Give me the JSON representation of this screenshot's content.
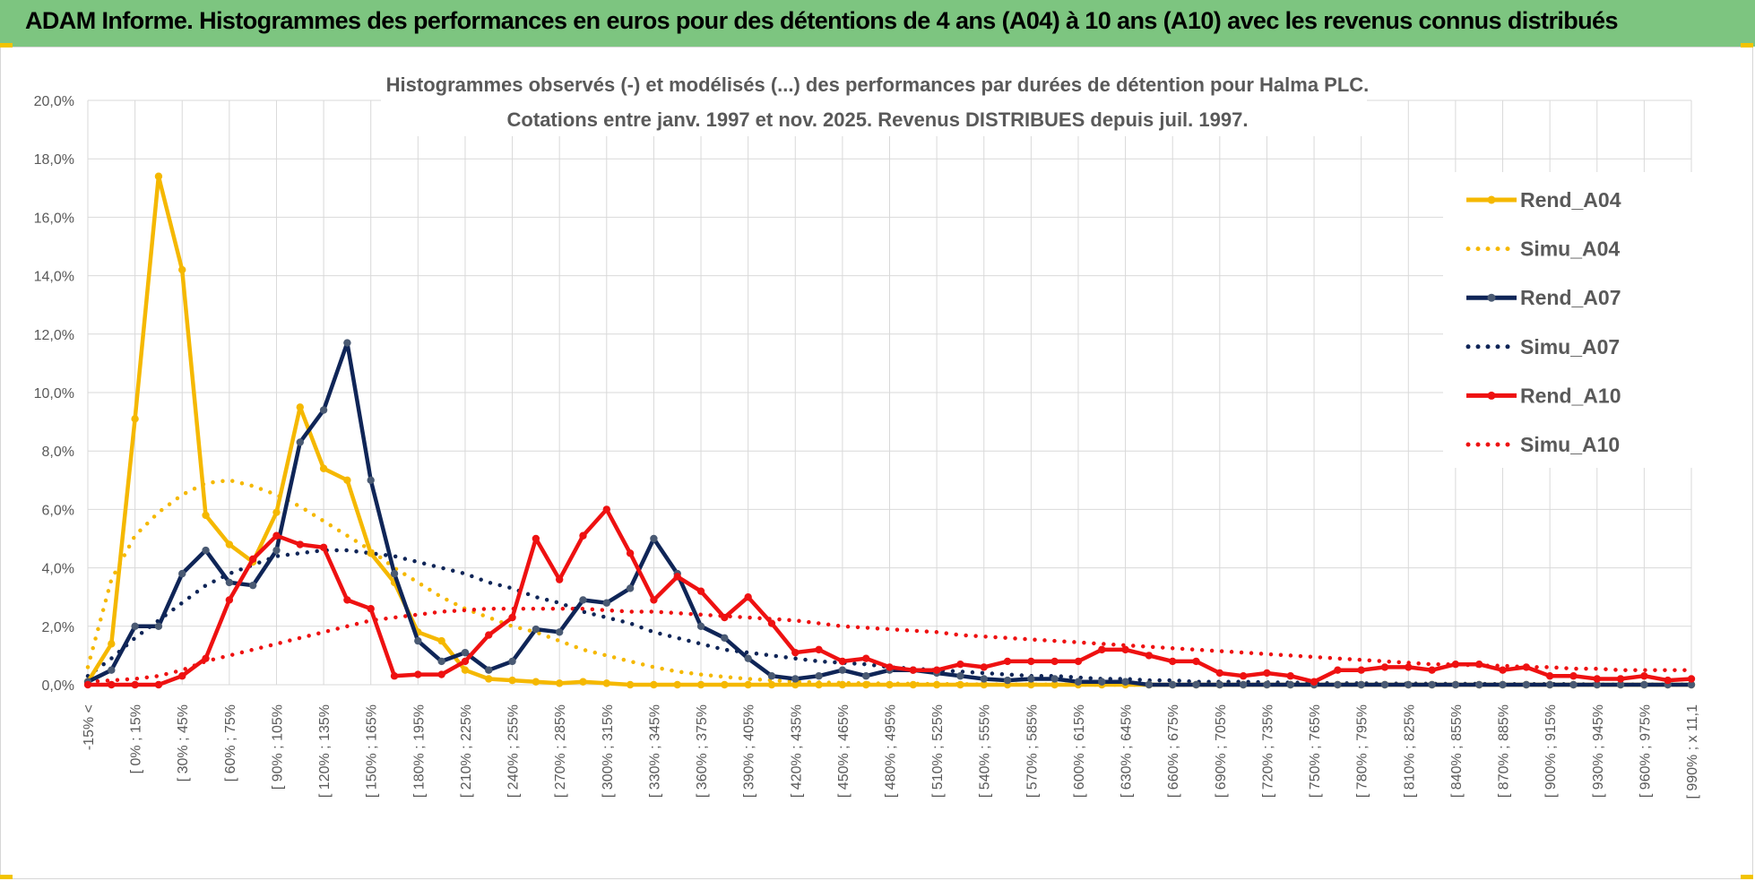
{
  "header": {
    "title": "ADAM Informe. Histogrammes des performances en euros pour des détentions de 4 ans (A04) à 10 ans (A10) avec les revenus connus distribués"
  },
  "colors": {
    "banner": "#7dc580",
    "A04": "#f5b800",
    "A07": "#0f2557",
    "A10": "#ee1111",
    "marker_A07": "#4a5a73",
    "grid": "#d9d9d9",
    "text": "#595959"
  },
  "chart_data": {
    "type": "line",
    "title": "Histogrammes observés (-) et modélisés (...) des performances par durées de détention pour Halma PLC.",
    "subtitle": "Cotations entre janv. 1997 et nov. 2025. Revenus DISTRIBUES depuis juil. 1997.",
    "ylim": [
      0,
      20
    ],
    "y_ticks": [
      "0,0%",
      "2,0%",
      "4,0%",
      "6,0%",
      "8,0%",
      "10,0%",
      "12,0%",
      "14,0%",
      "16,0%",
      "18,0%",
      "20,0%"
    ],
    "x_tick_labels": [
      "-15% <",
      "[ 0% ; 15%",
      "[ 30% ; 45%",
      "[ 60% ; 75%",
      "[ 90% ; 105%",
      "[ 120% ; 135%",
      "[ 150% ; 165%",
      "[ 180% ; 195%",
      "[ 210% ; 225%",
      "[ 240% ; 255%",
      "[ 270% ; 285%",
      "[ 300% ; 315%",
      "[ 330% ; 345%",
      "[ 360% ; 375%",
      "[ 390% ; 405%",
      "[ 420% ; 435%",
      "[ 450% ; 465%",
      "[ 480% ; 495%",
      "[ 510% ; 525%",
      "[ 540% ; 555%",
      "[ 570% ; 585%",
      "[ 600% ; 615%",
      "[ 630% ; 645%",
      "[ 660% ; 675%",
      "[ 690% ; 705%",
      "[ 720% ; 735%",
      "[ 750% ; 765%",
      "[ 780% ; 795%",
      "[ 810% ; 825%",
      "[ 840% ; 855%",
      "[ 870% ; 885%",
      "[ 900% ; 915%",
      "[ 930% ; 945%",
      "[ 960% ; 975%",
      "[ 990% ; x 11,1"
    ],
    "n_points": 69,
    "series": [
      {
        "name": "Rend_A04",
        "style": "solid",
        "color_key": "A04",
        "values": [
          0.1,
          1.4,
          9.1,
          17.4,
          14.2,
          5.8,
          4.8,
          4.2,
          5.9,
          9.5,
          7.4,
          7.0,
          4.5,
          3.5,
          1.8,
          1.5,
          0.5,
          0.2,
          0.15,
          0.1,
          0.05,
          0.1,
          0.05,
          0,
          0,
          0,
          0,
          0,
          0,
          0,
          0,
          0,
          0,
          0,
          0,
          0,
          0,
          0,
          0,
          0,
          0,
          0,
          0,
          0,
          0,
          0,
          0,
          0,
          0,
          0,
          0,
          0,
          0,
          0,
          0,
          0,
          0,
          0,
          0,
          0,
          0,
          0,
          0,
          0,
          0,
          0,
          0,
          0,
          0
        ]
      },
      {
        "name": "Simu_A04",
        "style": "dotted",
        "color_key": "A04",
        "values": [
          0.6,
          3.6,
          5.1,
          5.9,
          6.5,
          6.9,
          7.0,
          6.8,
          6.5,
          6.1,
          5.6,
          5.1,
          4.6,
          4.0,
          3.5,
          3.0,
          2.6,
          2.3,
          2.0,
          1.8,
          1.5,
          1.2,
          1.0,
          0.8,
          0.6,
          0.45,
          0.35,
          0.27,
          0.2,
          0.15,
          0.1,
          0.08,
          0.06,
          0.05,
          0.04,
          0.03,
          0.02,
          0.02,
          0.01,
          0.01,
          0.01,
          0.01,
          0,
          0,
          0,
          0,
          0,
          0,
          0,
          0,
          0,
          0,
          0,
          0,
          0,
          0,
          0,
          0,
          0,
          0,
          0,
          0,
          0,
          0,
          0,
          0,
          0,
          0,
          0
        ]
      },
      {
        "name": "Rend_A07",
        "style": "solid",
        "color_key": "A07",
        "values": [
          0.1,
          0.5,
          2.0,
          2.0,
          3.8,
          4.6,
          3.5,
          3.4,
          4.6,
          8.3,
          9.4,
          11.7,
          7.0,
          3.8,
          1.5,
          0.8,
          1.1,
          0.5,
          0.8,
          1.9,
          1.8,
          2.9,
          2.8,
          3.3,
          5.0,
          3.8,
          2.0,
          1.6,
          0.9,
          0.3,
          0.2,
          0.3,
          0.5,
          0.3,
          0.5,
          0.5,
          0.4,
          0.3,
          0.2,
          0.15,
          0.2,
          0.2,
          0.1,
          0.1,
          0.1,
          0,
          0,
          0,
          0,
          0,
          0,
          0,
          0,
          0,
          0,
          0,
          0,
          0,
          0,
          0,
          0,
          0,
          0,
          0,
          0,
          0,
          0,
          0,
          0
        ]
      },
      {
        "name": "Simu_A07",
        "style": "dotted",
        "color_key": "A07",
        "values": [
          0.3,
          0.9,
          1.6,
          2.2,
          2.8,
          3.4,
          3.8,
          4.1,
          4.4,
          4.5,
          4.6,
          4.6,
          4.5,
          4.4,
          4.2,
          4.0,
          3.8,
          3.5,
          3.3,
          3.0,
          2.8,
          2.5,
          2.3,
          2.1,
          1.8,
          1.6,
          1.4,
          1.2,
          1.1,
          1.0,
          0.9,
          0.8,
          0.75,
          0.7,
          0.6,
          0.55,
          0.5,
          0.45,
          0.4,
          0.35,
          0.3,
          0.3,
          0.25,
          0.2,
          0.2,
          0.15,
          0.15,
          0.1,
          0.1,
          0.1,
          0.08,
          0.07,
          0.06,
          0.05,
          0.05,
          0.04,
          0.04,
          0.03,
          0.03,
          0.03,
          0.02,
          0.02,
          0.02,
          0.02,
          0.01,
          0.01,
          0.01,
          0.01,
          0.01
        ]
      },
      {
        "name": "Rend_A10",
        "style": "solid",
        "color_key": "A10",
        "values": [
          0,
          0,
          0,
          0,
          0.3,
          0.9,
          2.9,
          4.3,
          5.1,
          4.8,
          4.7,
          2.9,
          2.6,
          0.3,
          0.35,
          0.35,
          0.8,
          1.7,
          2.3,
          5.0,
          3.6,
          5.1,
          6.0,
          4.5,
          2.9,
          3.7,
          3.2,
          2.3,
          3.0,
          2.1,
          1.1,
          1.2,
          0.8,
          0.9,
          0.6,
          0.5,
          0.5,
          0.7,
          0.6,
          0.8,
          0.8,
          0.8,
          0.8,
          1.2,
          1.2,
          1.0,
          0.8,
          0.8,
          0.4,
          0.3,
          0.4,
          0.3,
          0.1,
          0.5,
          0.5,
          0.6,
          0.6,
          0.5,
          0.7,
          0.7,
          0.5,
          0.6,
          0.3,
          0.3,
          0.2,
          0.2,
          0.3,
          0.15,
          0.2
        ]
      },
      {
        "name": "Simu_A10",
        "style": "dotted",
        "color_key": "A10",
        "values": [
          0.1,
          0.15,
          0.2,
          0.3,
          0.5,
          0.8,
          1.0,
          1.2,
          1.4,
          1.6,
          1.8,
          2.0,
          2.2,
          2.3,
          2.4,
          2.5,
          2.55,
          2.6,
          2.6,
          2.6,
          2.6,
          2.6,
          2.55,
          2.5,
          2.5,
          2.45,
          2.4,
          2.35,
          2.3,
          2.25,
          2.2,
          2.1,
          2.0,
          1.95,
          1.9,
          1.85,
          1.8,
          1.7,
          1.65,
          1.6,
          1.55,
          1.5,
          1.45,
          1.4,
          1.35,
          1.3,
          1.25,
          1.2,
          1.15,
          1.1,
          1.05,
          1.0,
          0.95,
          0.9,
          0.85,
          0.8,
          0.75,
          0.7,
          0.7,
          0.65,
          0.65,
          0.6,
          0.6,
          0.55,
          0.55,
          0.5,
          0.5,
          0.5,
          0.5
        ]
      }
    ],
    "legend_position": "top-right",
    "legend": [
      "Rend_A04",
      "Simu_A04",
      "Rend_A07",
      "Simu_A07",
      "Rend_A10",
      "Simu_A10"
    ]
  }
}
